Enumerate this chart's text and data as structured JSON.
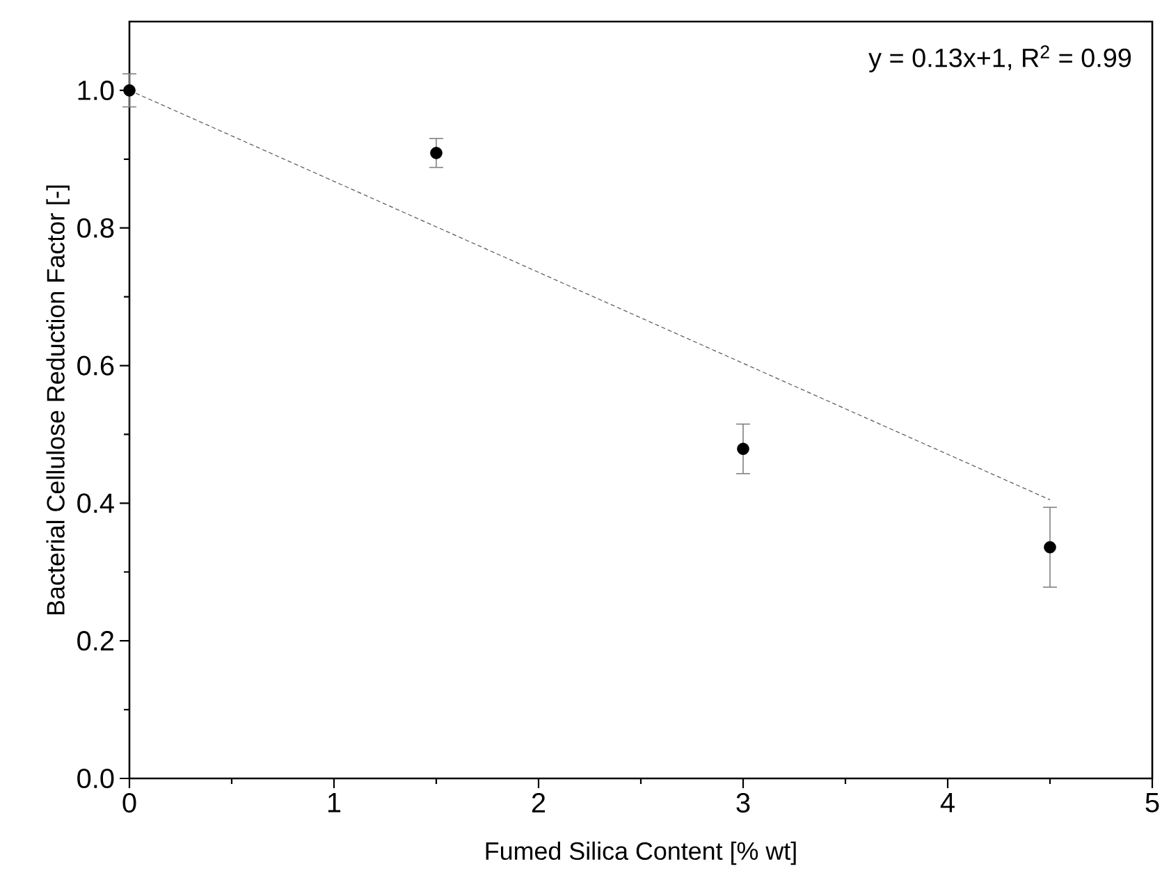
{
  "chart_data": {
    "type": "scatter",
    "xlabel": "Fumed Silica Content [% wt]",
    "ylabel": "Bacterial Cellulose Reduction Factor [-]",
    "xlim": [
      0,
      5
    ],
    "ylim": [
      0,
      1.1
    ],
    "xticks": [
      0,
      1,
      2,
      3,
      4,
      5
    ],
    "yticks": [
      {
        "value": 0,
        "label": "0.0"
      },
      0.2,
      0.4,
      0.6,
      0.8,
      {
        "value": 1,
        "label": "1.0"
      }
    ],
    "annotations": [
      "y = 0.13x+1, R$^{2}$ = 0.99"
    ],
    "series": [
      {
        "color": "#000000",
        "marker": "circle",
        "x": [
          0,
          1.5,
          3,
          4.5
        ],
        "values": [
          1.0,
          0.909,
          0.479,
          0.336
        ],
        "errors": [
          0.024,
          0.021,
          0.036,
          0.058
        ]
      },
      {
        "type": "line",
        "color": "#555555",
        "line_style": "dashed",
        "marker": "none",
        "x": [
          0,
          4.5
        ],
        "values": [
          1.0,
          0.405
        ]
      }
    ]
  }
}
